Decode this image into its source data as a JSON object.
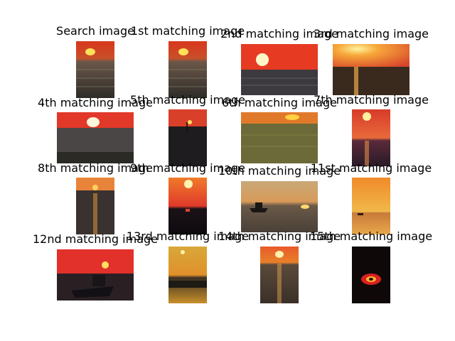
{
  "figure": {
    "titles": [
      "Search image",
      "1st matching image",
      "2nd matching image",
      "3rd matching image",
      "4th matching image",
      "5th matching image",
      "6th matching image",
      "7th matching image",
      "8th matching image",
      "9th matching image",
      "10th matching image",
      "11st matching image",
      "12nd matching image",
      "13rd matching image",
      "14th matching image",
      "15th matching image"
    ]
  }
}
